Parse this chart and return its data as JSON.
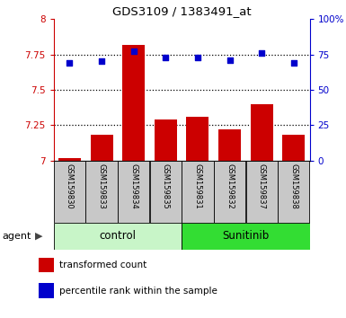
{
  "title": "GDS3109 / 1383491_at",
  "samples": [
    "GSM159830",
    "GSM159833",
    "GSM159834",
    "GSM159835",
    "GSM159831",
    "GSM159832",
    "GSM159837",
    "GSM159838"
  ],
  "bar_values": [
    7.02,
    7.18,
    7.82,
    7.29,
    7.31,
    7.22,
    7.4,
    7.18
  ],
  "percentile_values": [
    69,
    70,
    77,
    73,
    73,
    71,
    76,
    69
  ],
  "groups": [
    {
      "label": "control",
      "start": 0,
      "end": 4,
      "color": "#c8f5c8"
    },
    {
      "label": "Sunitinib",
      "start": 4,
      "end": 8,
      "color": "#33dd33"
    }
  ],
  "ylim_left": [
    7.0,
    8.0
  ],
  "ylim_right": [
    0,
    100
  ],
  "yticks_left": [
    7.0,
    7.25,
    7.5,
    7.75,
    8.0
  ],
  "ytick_labels_left": [
    "7",
    "7.25",
    "7.5",
    "7.75",
    "8"
  ],
  "yticks_right": [
    0,
    25,
    50,
    75,
    100
  ],
  "ytick_labels_right": [
    "0",
    "25",
    "50",
    "75",
    "100%"
  ],
  "grid_values": [
    7.25,
    7.5,
    7.75
  ],
  "bar_color": "#cc0000",
  "dot_color": "#0000cc",
  "bar_width": 0.7,
  "agent_label": "agent",
  "legend_items": [
    {
      "color": "#cc0000",
      "label": "transformed count"
    },
    {
      "color": "#0000cc",
      "label": "percentile rank within the sample"
    }
  ],
  "left_axis_color": "#cc0000",
  "right_axis_color": "#0000cc",
  "label_box_color": "#c8c8c8",
  "fig_width": 3.85,
  "fig_height": 3.54,
  "dpi": 100
}
